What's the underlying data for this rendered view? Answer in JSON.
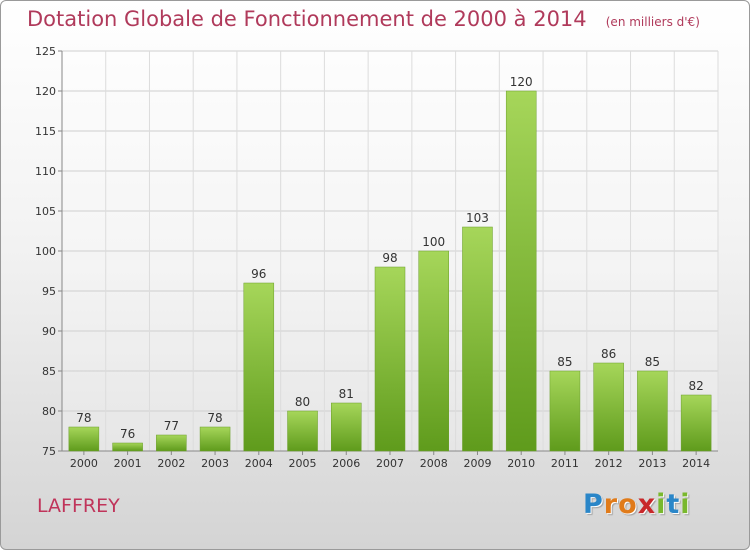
{
  "header": {
    "title": "Dotation Globale de Fonctionnement de 2000 à 2014",
    "unit": "(en milliers d'€)"
  },
  "commune": "LAFFREY",
  "logo": {
    "letters": [
      {
        "ch": "P",
        "color": "#2a86c8"
      },
      {
        "ch": "r",
        "color": "#e07b1a"
      },
      {
        "ch": "o",
        "color": "#e07b1a"
      },
      {
        "ch": "x",
        "color": "#c8282a"
      },
      {
        "ch": "i",
        "color": "#79b82d"
      },
      {
        "ch": "t",
        "color": "#2a86c8"
      },
      {
        "ch": "i",
        "color": "#79b82d"
      }
    ]
  },
  "chart_data": {
    "type": "bar",
    "title": "Dotation Globale de Fonctionnement de 2000 à 2014",
    "unit": "(en milliers d'€)",
    "categories": [
      "2000",
      "2001",
      "2002",
      "2003",
      "2004",
      "2005",
      "2006",
      "2007",
      "2008",
      "2009",
      "2010",
      "2011",
      "2012",
      "2013",
      "2014"
    ],
    "values": [
      78,
      76,
      77,
      78,
      96,
      80,
      81,
      98,
      100,
      103,
      120,
      85,
      86,
      85,
      82
    ],
    "ylim": [
      75,
      125
    ],
    "yticks": [
      75,
      80,
      85,
      90,
      95,
      100,
      105,
      110,
      115,
      120,
      125
    ],
    "grid": true,
    "bar_color_top": "#a6d65a",
    "bar_color_bottom": "#5f9b1c"
  }
}
